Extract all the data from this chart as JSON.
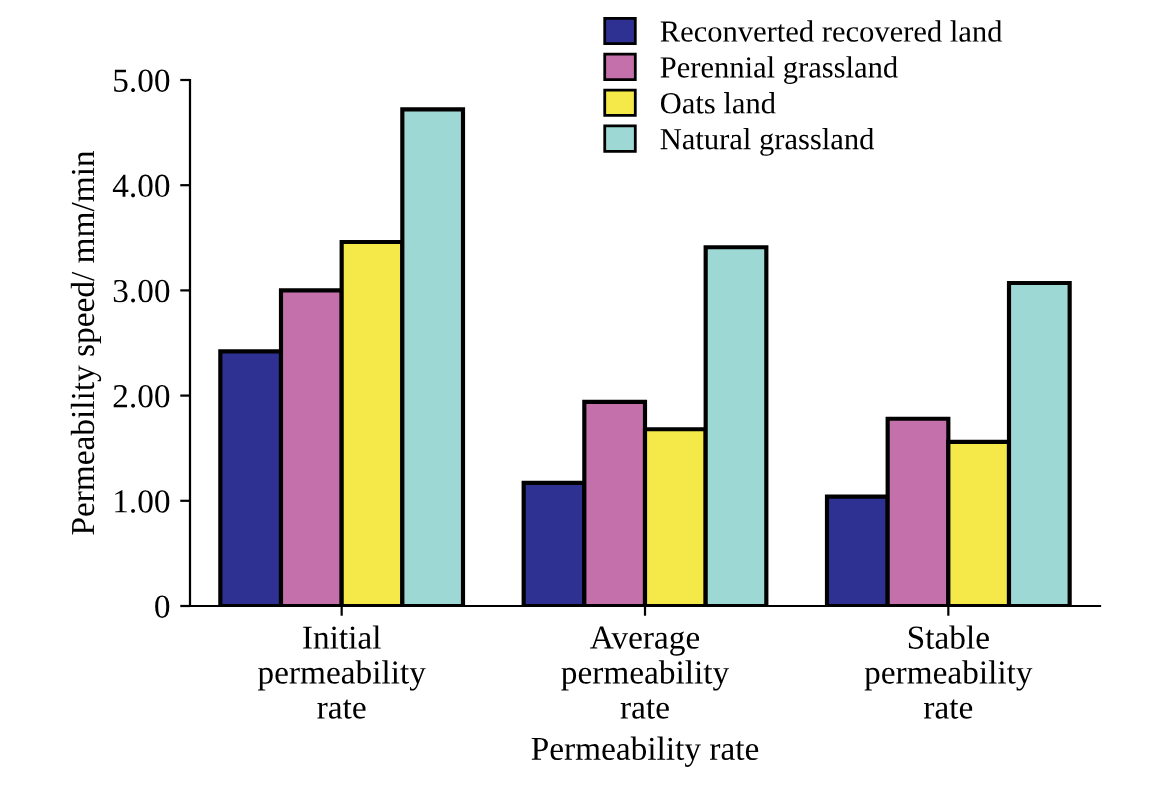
{
  "chart_data": {
    "type": "bar",
    "xlabel": "Permeability rate",
    "ylabel": "Permeability speed/ mm/min",
    "categories": [
      "Initial\npermeability\nrate",
      "Average\npermeability\nrate",
      "Stable\npermeability\nrate"
    ],
    "series": [
      {
        "name": "Reconverted recovered land",
        "color": "#2e3192",
        "values": [
          2.42,
          1.17,
          1.04
        ]
      },
      {
        "name": "Perennial grassland",
        "color": "#c471ab",
        "values": [
          3.0,
          1.94,
          1.78
        ]
      },
      {
        "name": "Oats land",
        "color": "#f5e94a",
        "values": [
          3.46,
          1.68,
          1.56
        ]
      },
      {
        "name": "Natural grassland",
        "color": "#9ed8d4",
        "values": [
          4.72,
          3.41,
          3.07
        ]
      }
    ],
    "ylim": [
      0,
      5
    ],
    "yticks": [
      0,
      {
        "value": 1,
        "label": "1.00"
      },
      {
        "value": 2,
        "label": "2.00"
      },
      {
        "value": 3,
        "label": "3.00"
      },
      {
        "value": 4,
        "label": "4.00"
      },
      {
        "value": 5,
        "label": "5.00"
      }
    ],
    "grid": false,
    "legend": "top right"
  }
}
